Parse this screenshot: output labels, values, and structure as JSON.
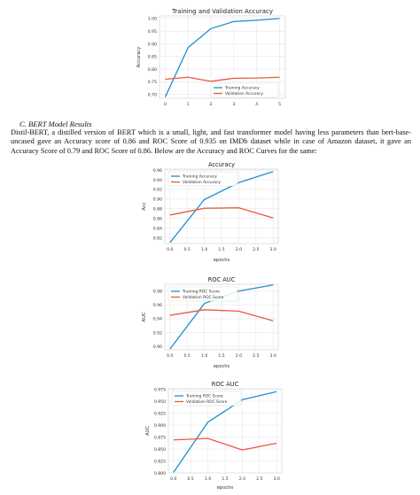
{
  "section": {
    "heading": "C.   BERT Model Results",
    "paragraph_lines": [
      "Distil-BERT, a distilled version of BERT which is a small, light, and fast transformer model having less parameters than bert-base-",
      "uncased gave an Accuracy score of 0.86 and ROC Score of 0.935 on IMDb dataset while in case of Amazon dataset, it gave an",
      "Accuracy Score of 0.79 and ROC Score of 0.86. Below are the Accuracy and ROC Curves for the same:"
    ]
  },
  "colors": {
    "training": "#1f8fcf",
    "validation": "#ea5a3c",
    "grid": "#e6e6e6",
    "frame": "#cccccc",
    "text": "#333333"
  },
  "chart_data": [
    {
      "type": "line",
      "title": "Training and Validation Accuracy",
      "xlabel": "",
      "ylabel": "Accuracy",
      "x": [
        0,
        1,
        2,
        3,
        4,
        5
      ],
      "xlim": [
        -0.25,
        5.25
      ],
      "ylim": [
        0.685,
        1.01
      ],
      "xticks": [
        "0",
        "1",
        "2",
        "3",
        "4",
        "5"
      ],
      "yticks": [
        "0.70",
        "0.75",
        "0.80",
        "0.85",
        "0.90",
        "0.95",
        "1.00"
      ],
      "series": [
        {
          "name": "Training Accuracy",
          "values": [
            0.69,
            0.885,
            0.96,
            0.988,
            0.993,
            1.0
          ]
        },
        {
          "name": "Validation Accuracy",
          "values": [
            0.76,
            0.768,
            0.752,
            0.764,
            0.765,
            0.768
          ]
        }
      ],
      "legend": "lower-right",
      "grid": true
    },
    {
      "type": "line",
      "title": "Accuracy",
      "xlabel": "epochs",
      "ylabel": "Acc",
      "x": [
        0,
        1,
        2,
        3
      ],
      "xlim": [
        -0.15,
        3.15
      ],
      "ylim": [
        0.808,
        0.962
      ],
      "xticks": [
        "0.0",
        "0.5",
        "1.0",
        "1.5",
        "2.0",
        "2.5",
        "3.0"
      ],
      "yticks": [
        "0.82",
        "0.84",
        "0.86",
        "0.88",
        "0.90",
        "0.92",
        "0.94",
        "0.96"
      ],
      "series": [
        {
          "name": "Training Accuracy",
          "values": [
            0.81,
            0.899,
            0.934,
            0.957
          ]
        },
        {
          "name": "Validation Accuracy",
          "values": [
            0.867,
            0.881,
            0.882,
            0.861
          ]
        }
      ],
      "legend": "upper-left",
      "grid": true
    },
    {
      "type": "line",
      "title": "ROC AUC",
      "xlabel": "epochs",
      "ylabel": "AUC",
      "x": [
        0,
        1,
        2,
        3
      ],
      "xlim": [
        -0.15,
        3.15
      ],
      "ylim": [
        0.895,
        0.99
      ],
      "xticks": [
        "0.0",
        "0.5",
        "1.0",
        "1.5",
        "2.0",
        "2.5",
        "3.0"
      ],
      "yticks": [
        "0.90",
        "0.92",
        "0.94",
        "0.96",
        "0.98"
      ],
      "series": [
        {
          "name": "Training ROC Score",
          "values": [
            0.896,
            0.962,
            0.98,
            0.989
          ]
        },
        {
          "name": "Validation ROC Score",
          "values": [
            0.945,
            0.953,
            0.951,
            0.937
          ]
        }
      ],
      "legend": "upper-left",
      "grid": true
    },
    {
      "type": "line",
      "title": "ROC AUC",
      "xlabel": "epochs",
      "ylabel": "AUC",
      "x": [
        0,
        1,
        2,
        3
      ],
      "xlim": [
        -0.15,
        3.15
      ],
      "ylim": [
        0.8,
        0.976
      ],
      "xticks": [
        "0.0",
        "0.5",
        "1.0",
        "1.5",
        "2.0",
        "2.5",
        "3.0"
      ],
      "yticks": [
        "0.800",
        "0.825",
        "0.850",
        "0.875",
        "0.900",
        "0.925",
        "0.950",
        "0.975"
      ],
      "series": [
        {
          "name": "Training ROC Score",
          "values": [
            0.801,
            0.906,
            0.953,
            0.97
          ]
        },
        {
          "name": "Validation ROC Score",
          "values": [
            0.869,
            0.872,
            0.848,
            0.862
          ]
        }
      ],
      "legend": "upper-left",
      "grid": true
    }
  ]
}
